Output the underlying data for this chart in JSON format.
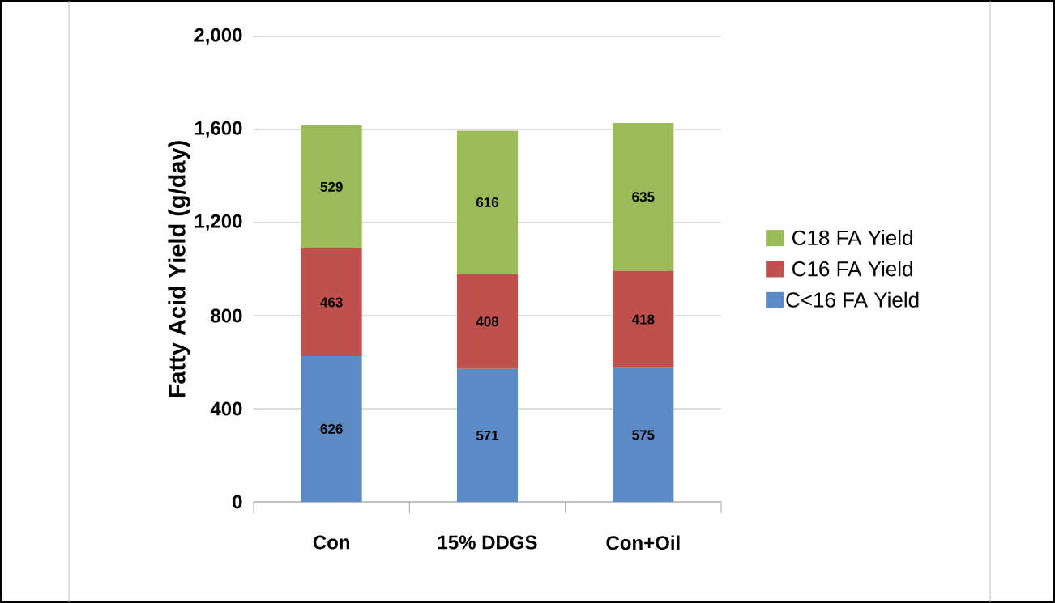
{
  "chart_data": {
    "type": "bar",
    "stacked": true,
    "ylabel": "Fatty Acid Yield (g/day)",
    "categories": [
      "Con",
      "15% DDGS",
      "Con+Oil"
    ],
    "series": [
      {
        "name": "C<16 FA Yield",
        "color": "#5b8ac6",
        "values": [
          626,
          571,
          575
        ]
      },
      {
        "name": "C16 FA Yield",
        "color": "#c0504d",
        "values": [
          463,
          408,
          418
        ]
      },
      {
        "name": "C18 FA Yield",
        "color": "#9bbb59",
        "values": [
          529,
          616,
          635
        ]
      }
    ],
    "ylim": [
      0,
      2000
    ],
    "yticks": [
      0,
      {
        "value": 400,
        "label": "400"
      },
      {
        "value": 800,
        "label": "800"
      },
      {
        "value": 1200,
        "label": "1,200"
      },
      {
        "value": 1600,
        "label": "1,600"
      },
      {
        "value": 2000,
        "label": "2,000"
      }
    ],
    "grid": "y",
    "legend": "right",
    "data_labels": true
  }
}
